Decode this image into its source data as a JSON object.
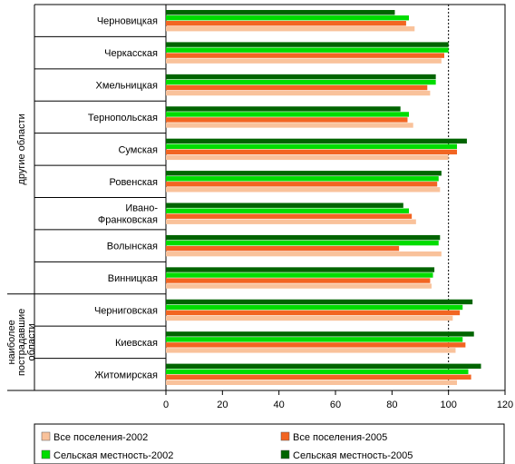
{
  "chart_data": {
    "type": "bar",
    "orientation": "horizontal",
    "categories": [
      "Черновицкая",
      "Черкасская",
      "Хмельницкая",
      "Тернопольская",
      "Сумская",
      "Ровенская",
      "Ивано-Франковская",
      "Волынская",
      "Винницкая",
      "Черниговская",
      "Киевская",
      "Житомирская"
    ],
    "category_lines": [
      [
        "Черновицкая"
      ],
      [
        "Черкасская"
      ],
      [
        "Хмельницкая"
      ],
      [
        "Тернопольская"
      ],
      [
        "Сумская"
      ],
      [
        "Ровенская"
      ],
      [
        "Ивано-",
        "Франковская"
      ],
      [
        "Волынская"
      ],
      [
        "Винницкая"
      ],
      [
        "Черниговская"
      ],
      [
        "Киевская"
      ],
      [
        "Житомирская"
      ]
    ],
    "groups": [
      {
        "label": "другие области",
        "label_lines": [
          "другие области"
        ],
        "from": 0,
        "to": 8
      },
      {
        "label": "наиболее пострадавшие области",
        "label_lines": [
          "наиболее",
          "пострадавшие",
          "области"
        ],
        "from": 9,
        "to": 11
      }
    ],
    "series": [
      {
        "name": "Сельская местность-2005",
        "color": "#006400",
        "values": [
          81,
          100,
          95.5,
          83,
          106.5,
          97.5,
          84,
          97,
          95,
          108.5,
          109,
          111.5
        ]
      },
      {
        "name": "Сельская местность-2002",
        "color": "#00dd00",
        "values": [
          86,
          100,
          95.5,
          86,
          103,
          96.5,
          86,
          96.5,
          94.5,
          105,
          105,
          107
        ]
      },
      {
        "name": "Все поселения-2005",
        "color": "#f26522",
        "values": [
          85,
          98.5,
          92.5,
          85.5,
          103,
          96,
          87,
          82.5,
          93.5,
          104,
          106,
          108
        ]
      },
      {
        "name": "Все поселения-2002",
        "color": "#f9c29b",
        "values": [
          88,
          97.5,
          93.5,
          87.5,
          100,
          97,
          88.5,
          97.5,
          94,
          101.5,
          102.5,
          103
        ]
      }
    ],
    "xlim": [
      0,
      120
    ],
    "x_ticks": [
      "0",
      "20",
      "40",
      "60",
      "80",
      "100",
      "120"
    ],
    "reference_line": 100,
    "legend": {
      "position": "bottom",
      "entries": [
        {
          "name": "Все поселения-2002",
          "color": "#f9c29b"
        },
        {
          "name": "Все поселения-2005",
          "color": "#f26522"
        },
        {
          "name": "Сельская местность-2002",
          "color": "#00dd00"
        },
        {
          "name": "Сельская местность-2005",
          "color": "#006400"
        }
      ]
    }
  }
}
